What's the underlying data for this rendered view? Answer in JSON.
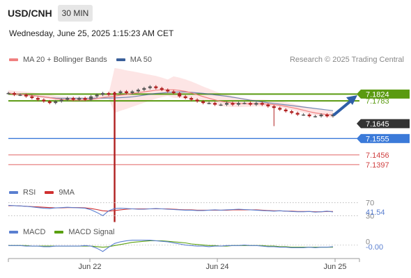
{
  "header": {
    "symbol": "USD/CNH",
    "timeframe": "30 MIN",
    "timestamp": "Wednesday, June 25, 2025 1:15:23 AM CET",
    "credit": "Research © 2025 Trading Central"
  },
  "colors": {
    "ma20": "#f08080",
    "ma50": "#3a5f9a",
    "bollinger_fill": "#fde0e0",
    "resistance": "#5a9a10",
    "support": "#3b7ad9",
    "rsi": "#5a7fd0",
    "rsi_ma": "#d03030",
    "macd": "#5a7fd0",
    "macd_signal": "#5aa010",
    "candle_up": "#555555",
    "candle_down": "#b02020"
  },
  "legends": {
    "price": [
      {
        "label": "MA 20 + Bollinger Bands",
        "color": "#f08080"
      },
      {
        "label": "MA 50",
        "color": "#3a5f9a"
      }
    ],
    "rsi": [
      {
        "label": "RSI",
        "color": "#5a7fd0"
      },
      {
        "label": "9MA",
        "color": "#d03030"
      }
    ],
    "macd": [
      {
        "label": "MACD",
        "color": "#5a7fd0"
      },
      {
        "label": "MACD Signal",
        "color": "#5aa010"
      }
    ]
  },
  "chart_data": [
    {
      "type": "line",
      "panel": "price",
      "xlabels": [
        "Jun 22",
        "Jun 24",
        "Jun 25"
      ],
      "ylim": [
        7.13,
        7.196
      ],
      "price_labels": [
        {
          "value": 7.1824,
          "text": "7.1824",
          "style": "green-box"
        },
        {
          "value": 7.1783,
          "text": "7.1783",
          "style": "green-text"
        },
        {
          "value": 7.1645,
          "text": "7.1645",
          "style": "dark-box"
        },
        {
          "value": 7.1555,
          "text": "7.1555",
          "style": "blue-box"
        },
        {
          "value": 7.1456,
          "text": "7.1456",
          "style": "red-text"
        },
        {
          "value": 7.1397,
          "text": "7.1397",
          "style": "red-text"
        }
      ],
      "levels": [
        {
          "name": "resistance-1",
          "value": 7.1824,
          "color": "#5a9a10"
        },
        {
          "name": "resistance-2",
          "value": 7.1783,
          "color": "#5a9a10"
        },
        {
          "name": "pivot",
          "value": 7.1555,
          "color": "#3b7ad9"
        },
        {
          "name": "support-1",
          "value": 7.1456,
          "color": "#e06060"
        },
        {
          "name": "support-2",
          "value": 7.1397,
          "color": "#e06060"
        }
      ],
      "close": [
        7.183,
        7.182,
        7.182,
        7.181,
        7.18,
        7.179,
        7.178,
        7.177,
        7.178,
        7.179,
        7.18,
        7.179,
        7.18,
        7.179,
        7.181,
        7.182,
        7.183,
        7.182,
        7.183,
        7.184,
        7.183,
        7.184,
        7.185,
        7.186,
        7.187,
        7.186,
        7.185,
        7.184,
        7.183,
        7.181,
        7.18,
        7.179,
        7.178,
        7.177,
        7.177,
        7.176,
        7.176,
        7.177,
        7.176,
        7.177,
        7.177,
        7.176,
        7.177,
        7.176,
        7.175,
        7.174,
        7.173,
        7.172,
        7.171,
        7.17,
        7.17,
        7.169,
        7.169,
        7.17,
        7.169,
        7.17
      ],
      "low_spikes": [
        {
          "index": 18,
          "low": 7.105
        },
        {
          "index": 45,
          "low": 7.163
        }
      ],
      "forecast": {
        "from": 7.17,
        "to": 7.18
      }
    },
    {
      "type": "line",
      "panel": "rsi",
      "ylim": [
        20,
        80
      ],
      "levels": [
        70,
        30
      ],
      "tick_labels": [
        "70",
        "30"
      ],
      "last_value_label": "41.54",
      "rsi": [
        62,
        61,
        60,
        59,
        57,
        55,
        53,
        52,
        54,
        55,
        56,
        55,
        54,
        53,
        48,
        40,
        30,
        45,
        52,
        53,
        52,
        51,
        50,
        50,
        51,
        52,
        51,
        50,
        49,
        48,
        47,
        47,
        46,
        46,
        47,
        48,
        47,
        48,
        49,
        50,
        49,
        48,
        47,
        46,
        45,
        44,
        45,
        44,
        43,
        42,
        42,
        43,
        41,
        42,
        44,
        41.54
      ],
      "ma9": [
        61,
        61,
        60,
        59,
        58,
        57,
        56,
        55,
        54,
        54,
        55,
        55,
        55,
        54,
        52,
        49,
        45,
        44,
        46,
        48,
        50,
        51,
        51,
        51,
        51,
        51,
        51,
        51,
        50,
        49,
        48,
        48,
        47,
        47,
        47,
        47,
        47,
        47,
        48,
        48,
        48,
        48,
        48,
        47,
        46,
        45,
        45,
        44,
        44,
        43,
        43,
        43,
        42,
        42,
        43,
        43
      ]
    },
    {
      "type": "line",
      "panel": "macd",
      "ylim": [
        -0.02,
        0.015
      ],
      "tick_labels": [
        "0"
      ],
      "last_value_label": "-0.00",
      "macd": [
        -0.001,
        -0.001,
        -0.001,
        -0.002,
        -0.002,
        -0.002,
        -0.003,
        -0.003,
        -0.002,
        -0.002,
        -0.002,
        -0.002,
        -0.002,
        -0.001,
        -0.002,
        -0.006,
        -0.012,
        -0.004,
        0.003,
        0.006,
        0.008,
        0.009,
        0.009,
        0.009,
        0.009,
        0.008,
        0.007,
        0.006,
        0.004,
        0.002,
        0.0,
        -0.001,
        -0.002,
        -0.002,
        -0.003,
        -0.002,
        -0.002,
        -0.001,
        -0.001,
        -0.001,
        0.0,
        -0.001,
        -0.001,
        -0.002,
        -0.003,
        -0.003,
        -0.004,
        -0.004,
        -0.005,
        -0.005,
        -0.005,
        -0.004,
        -0.005,
        -0.004,
        -0.004,
        -0.003
      ],
      "signal": [
        -0.001,
        -0.001,
        -0.001,
        -0.001,
        -0.002,
        -0.002,
        -0.002,
        -0.002,
        -0.002,
        -0.002,
        -0.002,
        -0.002,
        -0.002,
        -0.002,
        -0.002,
        -0.003,
        -0.004,
        -0.003,
        -0.001,
        0.001,
        0.003,
        0.005,
        0.006,
        0.007,
        0.008,
        0.008,
        0.008,
        0.007,
        0.006,
        0.005,
        0.004,
        0.002,
        0.001,
        0.0,
        -0.001,
        -0.001,
        -0.002,
        -0.002,
        -0.001,
        -0.001,
        -0.001,
        -0.001,
        -0.001,
        -0.001,
        -0.002,
        -0.002,
        -0.003,
        -0.003,
        -0.004,
        -0.004,
        -0.004,
        -0.004,
        -0.004,
        -0.004,
        -0.004,
        -0.004
      ]
    }
  ]
}
